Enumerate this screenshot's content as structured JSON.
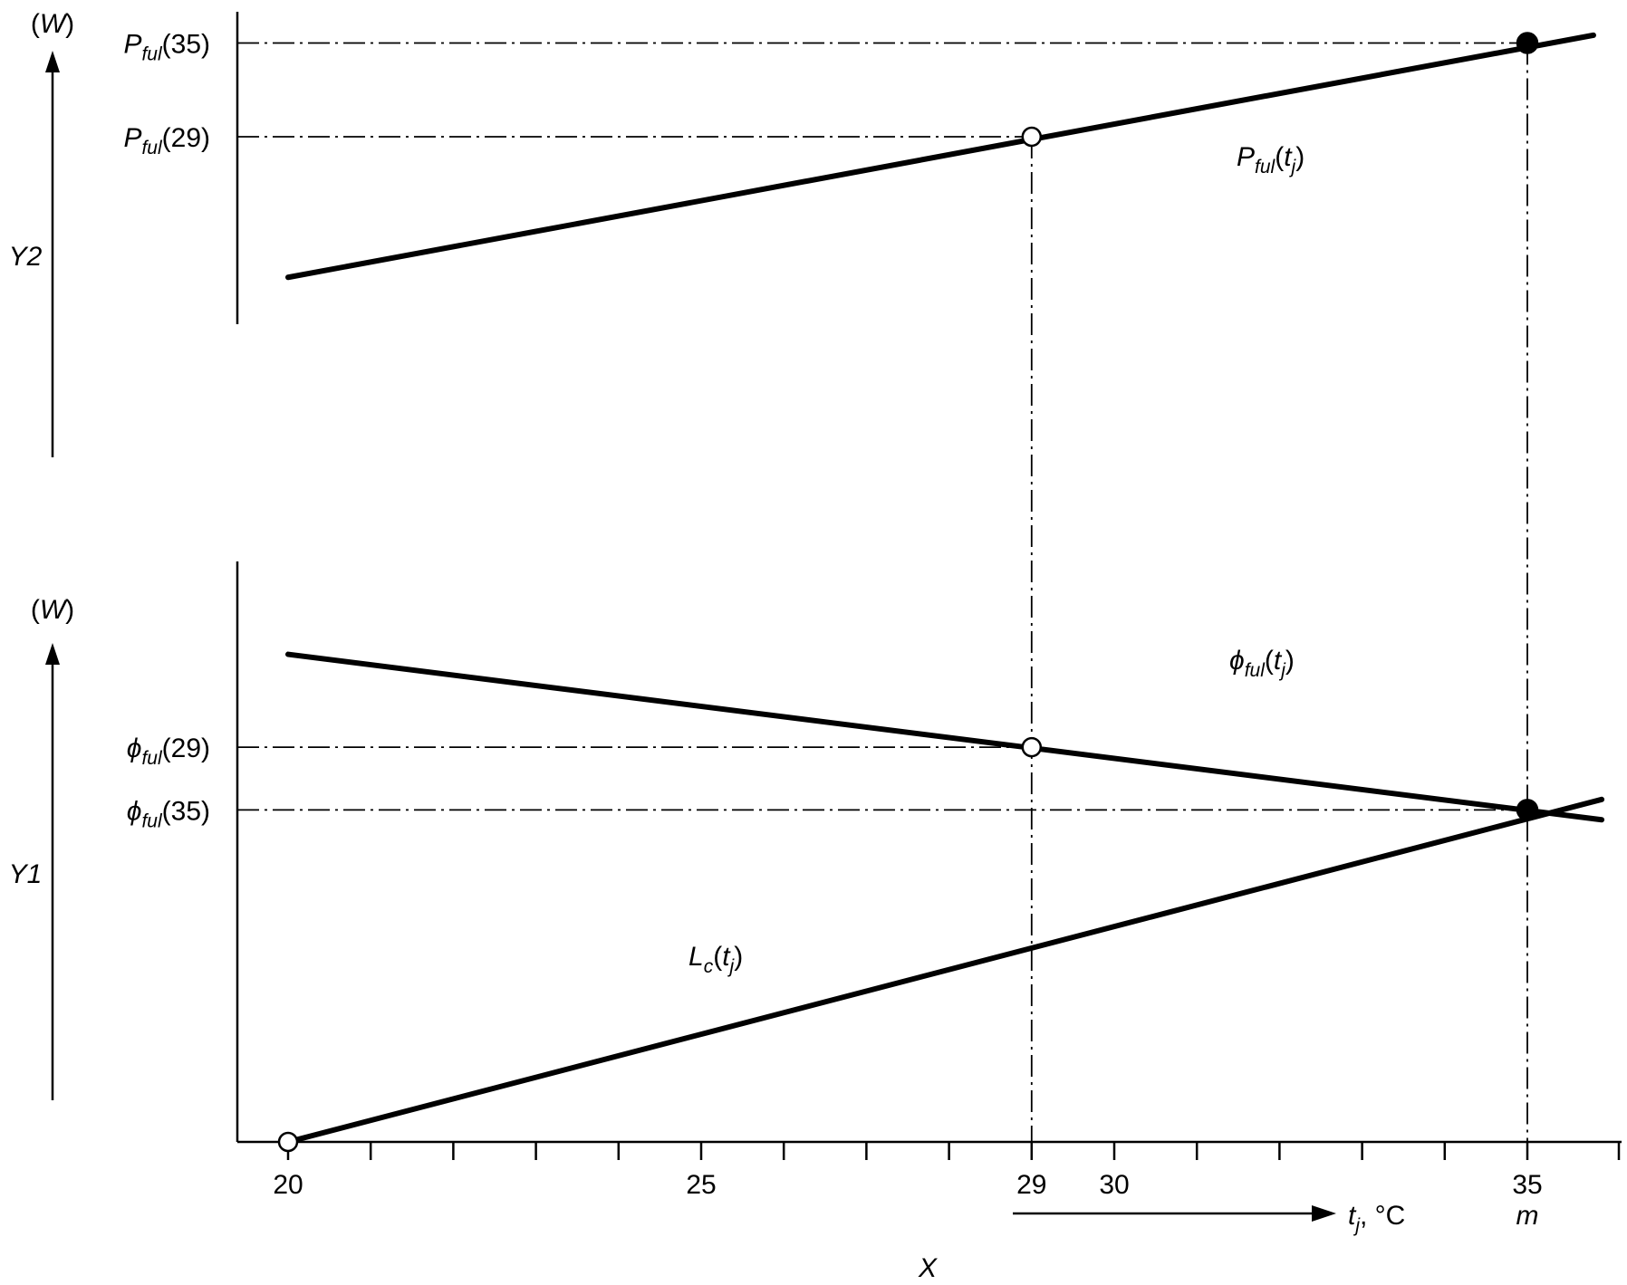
{
  "chart_data": {
    "type": "line",
    "x_axis": {
      "name": "X",
      "label": "t",
      "label_sub": "j",
      "label_unit": ", °C",
      "range": [
        19.4,
        35.6
      ],
      "ticks": [
        20,
        21,
        22,
        23,
        24,
        25,
        26,
        27,
        28,
        29,
        30,
        31,
        32,
        33,
        34,
        35
      ],
      "tick_labels": [
        {
          "x": 20,
          "text": "20"
        },
        {
          "x": 25,
          "text": "25"
        },
        {
          "x": 29,
          "text": "29"
        },
        {
          "x": 30,
          "text": "30"
        },
        {
          "x": 35,
          "text": "35"
        }
      ],
      "marker": {
        "x": 35,
        "text": "m"
      }
    },
    "panels": [
      {
        "name": "Y2",
        "unit": "(W)",
        "series": [
          {
            "name_main": "P",
            "name_sub": "ful",
            "name_tail": "(t",
            "name_tail_sub": "j",
            "name_close": ")",
            "x": [
              20,
              35.8
            ],
            "y": [
              0.15,
              0.925
            ]
          }
        ],
        "points": [
          {
            "x": 29,
            "y": 0.6,
            "filled": false,
            "label_main": "P",
            "label_sub": "ful",
            "label_tail": "(29)"
          },
          {
            "x": 35,
            "y": 0.9,
            "filled": true,
            "label_main": "P",
            "label_sub": "ful",
            "label_tail": "(35)"
          }
        ]
      },
      {
        "name": "Y1",
        "unit": "(W)",
        "series": [
          {
            "name_main": "ϕ",
            "name_sub": "ful",
            "name_tail": "(t",
            "name_tail_sub": "j",
            "name_close": ")",
            "x": [
              20,
              35.9
            ],
            "y": [
              0.84,
              0.555
            ]
          },
          {
            "name_main": "L",
            "name_sub": "c",
            "name_tail": "(t",
            "name_tail_sub": "j",
            "name_close": ")",
            "x": [
              20,
              35.9
            ],
            "y": [
              0.0,
              0.59
            ]
          }
        ],
        "points": [
          {
            "x": 29,
            "y": 0.68,
            "filled": false,
            "label_main": "ϕ",
            "label_sub": "ful",
            "label_tail": "(29)"
          },
          {
            "x": 35,
            "y": 0.572,
            "filled": true,
            "label_main": "ϕ",
            "label_sub": "ful",
            "label_tail": "(35)"
          },
          {
            "x": 20,
            "y": 0.0,
            "filled": false
          }
        ]
      }
    ]
  }
}
